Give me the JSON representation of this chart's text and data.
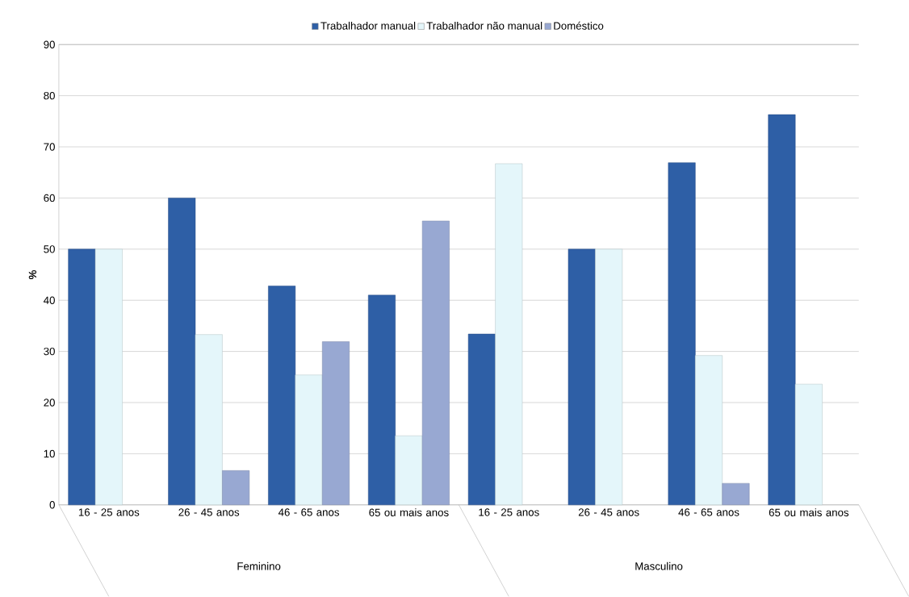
{
  "chart_data": {
    "type": "bar",
    "ylabel": "%",
    "categories": [
      "16 - 25 anos",
      "26 - 45 anos",
      "46 - 65 anos",
      "65 ou mais anos",
      "16 - 25 anos",
      "26 - 45 anos",
      "46 - 65 anos",
      "65 ou mais anos"
    ],
    "series": [
      {
        "name": "Trabalhador manual",
        "color": "#2e5fa6",
        "values": [
          50,
          60,
          42.8,
          41,
          33.4,
          50,
          66.9,
          76.3
        ]
      },
      {
        "name": "Trabalhador não manual",
        "color": "#e4f6fa",
        "values": [
          50,
          33.3,
          25.4,
          13.5,
          66.7,
          50,
          29.2,
          23.6
        ]
      },
      {
        "name": "Doméstico",
        "color": "#98a8d2",
        "values": [
          null,
          6.7,
          31.9,
          55.5,
          null,
          null,
          4.2,
          null
        ]
      }
    ],
    "annotations": [
      "Feminino",
      "Masculino"
    ],
    "ylim": [
      0,
      90
    ],
    "yticks": [
      0,
      10,
      20,
      30,
      40,
      50,
      60,
      70,
      80,
      90
    ],
    "grid": "y",
    "legend": "top"
  }
}
